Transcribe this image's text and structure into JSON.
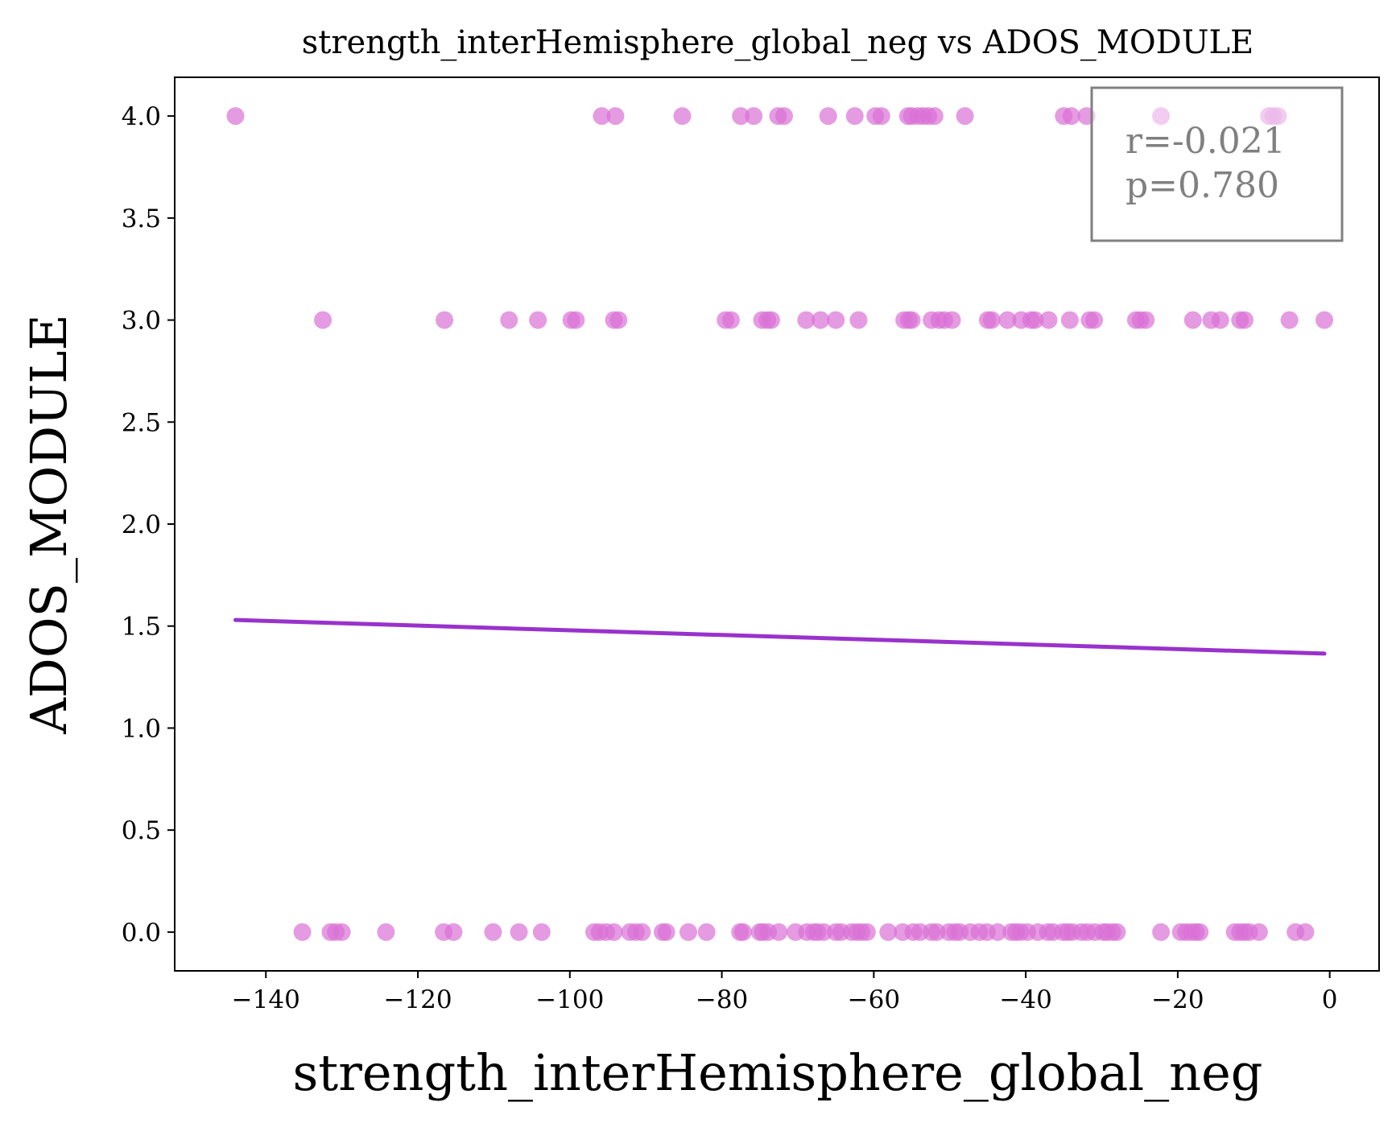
{
  "chart_data": {
    "type": "scatter",
    "title": "strength_interHemisphere_global_neg vs ADOS_MODULE",
    "xlabel": "strength_interHemisphere_global_neg",
    "ylabel": "ADOS_MODULE",
    "xlim": [
      -152,
      6.5
    ],
    "ylim": [
      -0.19,
      4.19
    ],
    "xticks": [
      -140,
      -120,
      -100,
      -80,
      -60,
      -40,
      -20,
      0
    ],
    "xtick_labels": [
      "−140",
      "−120",
      "−100",
      "−80",
      "−60",
      "−40",
      "−20",
      "0"
    ],
    "yticks": [
      0.0,
      0.5,
      1.0,
      1.5,
      2.0,
      2.5,
      3.0,
      3.5,
      4.0
    ],
    "ytick_labels": [
      "0.0",
      "0.5",
      "1.0",
      "1.5",
      "2.0",
      "2.5",
      "3.0",
      "3.5",
      "4.0"
    ],
    "grid": false,
    "colors": {
      "points": "#DA70D6",
      "fit_line": "#9932CC",
      "stats_text": "#808080",
      "stats_border": "#808080"
    },
    "series": [
      {
        "values": [
          [
            -144,
            4
          ],
          [
            -95.8,
            4
          ],
          [
            -94,
            4
          ],
          [
            -85.2,
            4
          ],
          [
            -77.5,
            4
          ],
          [
            -75.8,
            4
          ],
          [
            -72.6,
            4
          ],
          [
            -71.8,
            4
          ],
          [
            -66,
            4
          ],
          [
            -62.5,
            4
          ],
          [
            -59.8,
            4
          ],
          [
            -59,
            4
          ],
          [
            -55.5,
            4
          ],
          [
            -55,
            4
          ],
          [
            -54.2,
            4
          ],
          [
            -53.5,
            4
          ],
          [
            -52.8,
            4
          ],
          [
            -52,
            4
          ],
          [
            -48,
            4
          ],
          [
            -35,
            4
          ],
          [
            -34,
            4
          ],
          [
            -32,
            4
          ],
          [
            -22.2,
            4
          ],
          [
            -8,
            4
          ],
          [
            -7.4,
            4
          ],
          [
            -6.8,
            4
          ],
          [
            -132.5,
            3
          ],
          [
            -116.5,
            3
          ],
          [
            -108,
            3
          ],
          [
            -104.2,
            3
          ],
          [
            -99.8,
            3
          ],
          [
            -99.2,
            3
          ],
          [
            -94.2,
            3
          ],
          [
            -93.6,
            3
          ],
          [
            -79.5,
            3
          ],
          [
            -78.8,
            3
          ],
          [
            -74.7,
            3
          ],
          [
            -74,
            3
          ],
          [
            -73.5,
            3
          ],
          [
            -68.9,
            3
          ],
          [
            -67,
            3
          ],
          [
            -65,
            3
          ],
          [
            -62,
            3
          ],
          [
            -56,
            3
          ],
          [
            -55.4,
            3
          ],
          [
            -55,
            3
          ],
          [
            -52.4,
            3
          ],
          [
            -51.4,
            3
          ],
          [
            -50.7,
            3
          ],
          [
            -49.7,
            3
          ],
          [
            -45,
            3
          ],
          [
            -44.5,
            3
          ],
          [
            -42.4,
            3
          ],
          [
            -40.6,
            3
          ],
          [
            -39.3,
            3
          ],
          [
            -38.8,
            3
          ],
          [
            -37,
            3
          ],
          [
            -34.2,
            3
          ],
          [
            -31.6,
            3
          ],
          [
            -31,
            3
          ],
          [
            -25.5,
            3
          ],
          [
            -24.9,
            3
          ],
          [
            -24.2,
            3
          ],
          [
            -18,
            3
          ],
          [
            -15.6,
            3
          ],
          [
            -14.4,
            3
          ],
          [
            -11.8,
            3
          ],
          [
            -11.2,
            3
          ],
          [
            -5.3,
            3
          ],
          [
            -0.7,
            3
          ],
          [
            -135.2,
            0
          ],
          [
            -131.5,
            0
          ],
          [
            -130.8,
            0
          ],
          [
            -130,
            0
          ],
          [
            -124.2,
            0
          ],
          [
            -116.6,
            0
          ],
          [
            -115.3,
            0
          ],
          [
            -110.1,
            0
          ],
          [
            -106.7,
            0
          ],
          [
            -103.7,
            0
          ],
          [
            -96.8,
            0
          ],
          [
            -96.1,
            0
          ],
          [
            -95.2,
            0
          ],
          [
            -94.2,
            0
          ],
          [
            -92.1,
            0
          ],
          [
            -91.3,
            0
          ],
          [
            -90.5,
            0
          ],
          [
            -87.8,
            0
          ],
          [
            -87.3,
            0
          ],
          [
            -84.4,
            0
          ],
          [
            -82,
            0
          ],
          [
            -77.6,
            0
          ],
          [
            -77.2,
            0
          ],
          [
            -75,
            0
          ],
          [
            -74.6,
            0
          ],
          [
            -73.9,
            0
          ],
          [
            -72.5,
            0
          ],
          [
            -70.3,
            0
          ],
          [
            -68.8,
            0
          ],
          [
            -67.9,
            0
          ],
          [
            -67.4,
            0
          ],
          [
            -66.6,
            0
          ],
          [
            -65,
            0
          ],
          [
            -64.3,
            0
          ],
          [
            -62.9,
            0
          ],
          [
            -62.2,
            0
          ],
          [
            -61.6,
            0
          ],
          [
            -60.9,
            0
          ],
          [
            -58.1,
            0
          ],
          [
            -56.2,
            0
          ],
          [
            -54.8,
            0
          ],
          [
            -53.9,
            0
          ],
          [
            -52.4,
            0
          ],
          [
            -51.7,
            0
          ],
          [
            -50.1,
            0
          ],
          [
            -49.3,
            0
          ],
          [
            -48.7,
            0
          ],
          [
            -47.3,
            0
          ],
          [
            -46.1,
            0
          ],
          [
            -45.1,
            0
          ],
          [
            -43.7,
            0
          ],
          [
            -41.9,
            0
          ],
          [
            -41.3,
            0
          ],
          [
            -40.7,
            0
          ],
          [
            -39.8,
            0
          ],
          [
            -38.4,
            0
          ],
          [
            -37.1,
            0
          ],
          [
            -36.4,
            0
          ],
          [
            -35.1,
            0
          ],
          [
            -34.5,
            0
          ],
          [
            -33.9,
            0
          ],
          [
            -32.7,
            0
          ],
          [
            -31.9,
            0
          ],
          [
            -30.9,
            0
          ],
          [
            -29.8,
            0
          ],
          [
            -29.3,
            0
          ],
          [
            -28.6,
            0
          ],
          [
            -28,
            0
          ],
          [
            -22.2,
            0
          ],
          [
            -19.6,
            0
          ],
          [
            -18.9,
            0
          ],
          [
            -18.2,
            0
          ],
          [
            -17.6,
            0
          ],
          [
            -17.1,
            0
          ],
          [
            -12.5,
            0
          ],
          [
            -11.8,
            0
          ],
          [
            -11.2,
            0
          ],
          [
            -10.6,
            0
          ],
          [
            -9.3,
            0
          ],
          [
            -4.5,
            0
          ],
          [
            -3.2,
            0
          ]
        ]
      }
    ],
    "fit_line": {
      "x": [
        -144,
        -0.7
      ],
      "y": [
        1.53,
        1.365
      ]
    },
    "stats": {
      "r": "r=-0.021",
      "p": "p=0.780"
    }
  }
}
